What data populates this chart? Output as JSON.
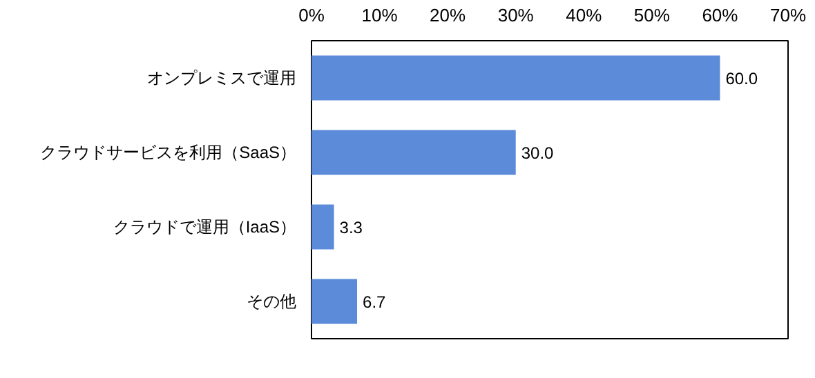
{
  "chart_data": {
    "type": "bar",
    "orientation": "horizontal",
    "categories": [
      "オンプレミスで運用",
      "クラウドサービスを利用（SaaS）",
      "クラウドで運用（IaaS）",
      "その他"
    ],
    "values": [
      60.0,
      30.0,
      3.3,
      6.7
    ],
    "color": "#5b8bd9",
    "xlim": [
      0,
      70
    ],
    "xticks": [
      {
        "value": 0,
        "label": "0%"
      },
      {
        "value": 10,
        "label": "10%"
      },
      {
        "value": 20,
        "label": "20%"
      },
      {
        "value": 30,
        "label": "30%"
      },
      {
        "value": 40,
        "label": "40%"
      },
      {
        "value": 50,
        "label": "50%"
      },
      {
        "value": 60,
        "label": "60%"
      },
      {
        "value": 70,
        "label": "70%"
      }
    ],
    "grid": false,
    "value_labels": [
      "60.0",
      "30.0",
      "3.3",
      "6.7"
    ]
  }
}
